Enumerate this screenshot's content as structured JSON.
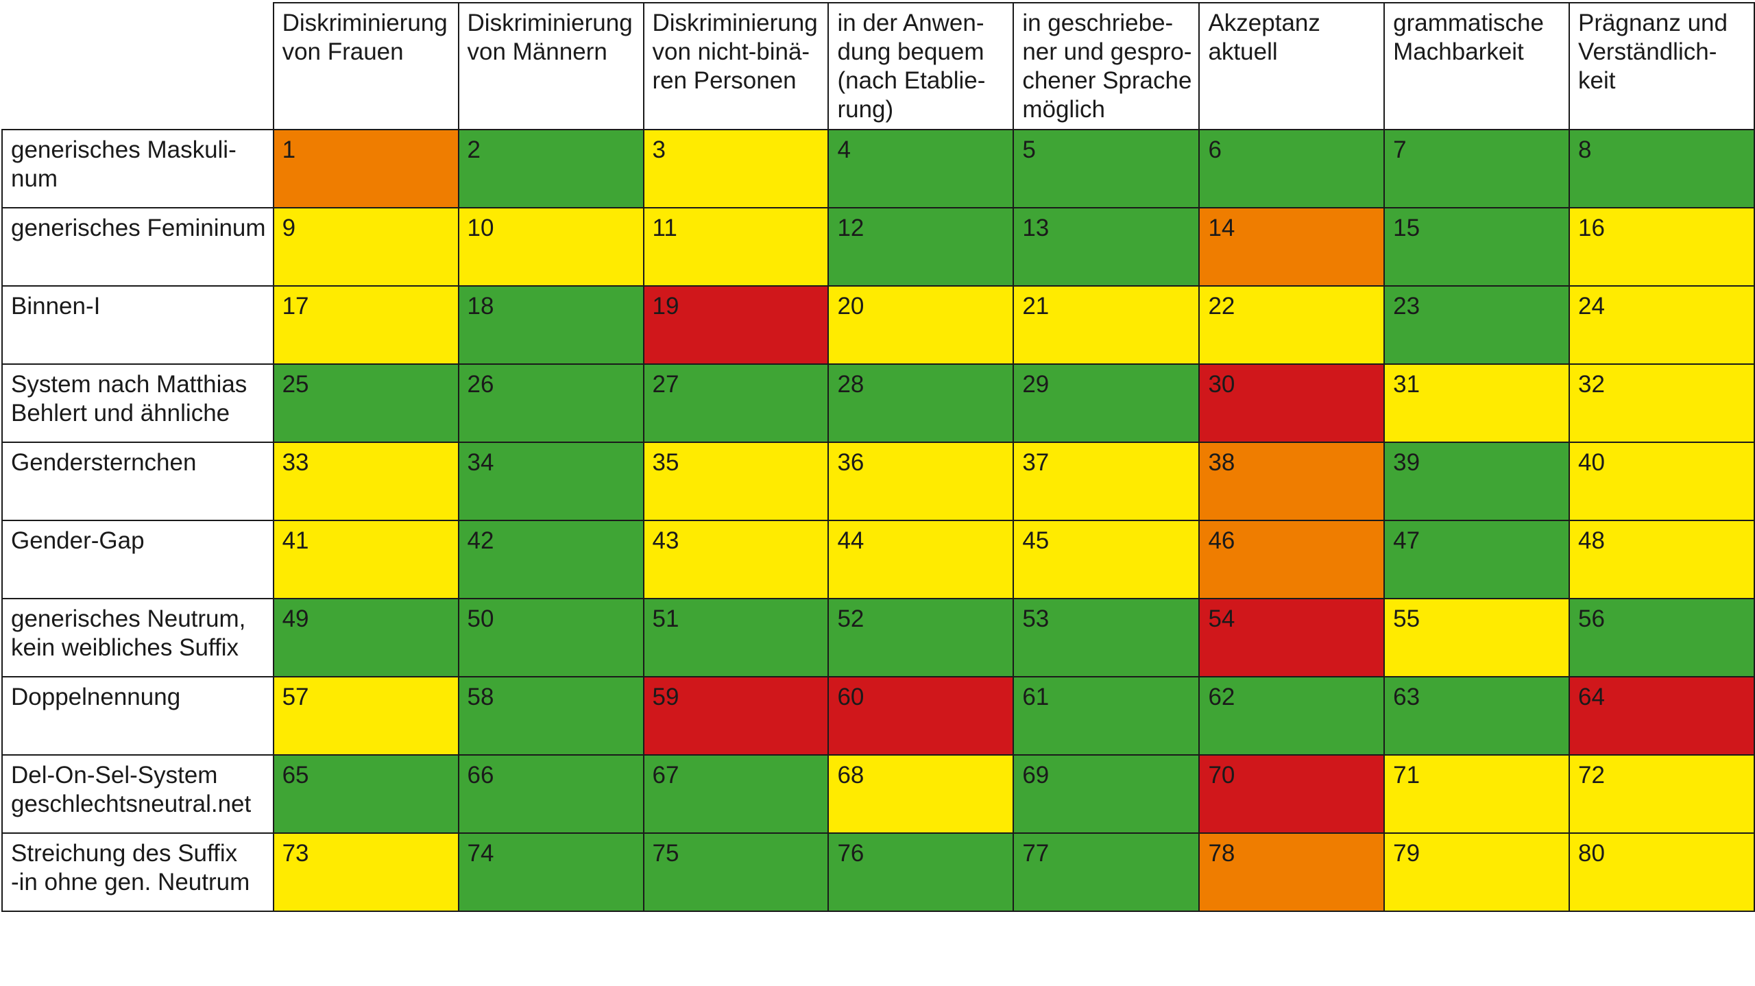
{
  "colors": {
    "green": "#3fa535",
    "yellow": "#ffeb00",
    "orange": "#ef7d00",
    "red": "#d0171b"
  },
  "columns": [
    [
      "Diskriminierung",
      "von Frauen"
    ],
    [
      "Diskriminierung",
      "von Männern"
    ],
    [
      "Diskriminierung",
      "von nicht-binä-",
      "ren Personen"
    ],
    [
      "in der Anwen-",
      "dung bequem",
      "(nach Etablie-",
      "rung)"
    ],
    [
      "in geschriebe-",
      "ner und gespro-",
      "chener Sprache",
      "möglich"
    ],
    [
      "Akzeptanz",
      "aktuell"
    ],
    [
      "grammatische",
      "Machbarkeit"
    ],
    [
      "Prägnanz und",
      "Verständlich-",
      "keit"
    ]
  ],
  "rows": [
    {
      "label": [
        "generisches Maskuli-",
        "num"
      ],
      "cells": [
        [
          "1",
          "orange"
        ],
        [
          "2",
          "green"
        ],
        [
          "3",
          "yellow"
        ],
        [
          "4",
          "green"
        ],
        [
          "5",
          "green"
        ],
        [
          "6",
          "green"
        ],
        [
          "7",
          "green"
        ],
        [
          "8",
          "green"
        ]
      ]
    },
    {
      "label": [
        "generisches Femininum"
      ],
      "cells": [
        [
          "9",
          "yellow"
        ],
        [
          "10",
          "yellow"
        ],
        [
          "11",
          "yellow"
        ],
        [
          "12",
          "green"
        ],
        [
          "13",
          "green"
        ],
        [
          "14",
          "orange"
        ],
        [
          "15",
          "green"
        ],
        [
          "16",
          "yellow"
        ]
      ]
    },
    {
      "label": [
        "Binnen-I"
      ],
      "cells": [
        [
          "17",
          "yellow"
        ],
        [
          "18",
          "green"
        ],
        [
          "19",
          "red"
        ],
        [
          "20",
          "yellow"
        ],
        [
          "21",
          "yellow"
        ],
        [
          "22",
          "yellow"
        ],
        [
          "23",
          "green"
        ],
        [
          "24",
          "yellow"
        ]
      ]
    },
    {
      "label": [
        "System nach Matthias",
        "Behlert und ähnliche"
      ],
      "cells": [
        [
          "25",
          "green"
        ],
        [
          "26",
          "green"
        ],
        [
          "27",
          "green"
        ],
        [
          "28",
          "green"
        ],
        [
          "29",
          "green"
        ],
        [
          "30",
          "red"
        ],
        [
          "31",
          "yellow"
        ],
        [
          "32",
          "yellow"
        ]
      ]
    },
    {
      "label": [
        "Gendersternchen"
      ],
      "cells": [
        [
          "33",
          "yellow"
        ],
        [
          "34",
          "green"
        ],
        [
          "35",
          "yellow"
        ],
        [
          "36",
          "yellow"
        ],
        [
          "37",
          "yellow"
        ],
        [
          "38",
          "orange"
        ],
        [
          "39",
          "green"
        ],
        [
          "40",
          "yellow"
        ]
      ]
    },
    {
      "label": [
        "Gender-Gap"
      ],
      "cells": [
        [
          "41",
          "yellow"
        ],
        [
          "42",
          "green"
        ],
        [
          "43",
          "yellow"
        ],
        [
          "44",
          "yellow"
        ],
        [
          "45",
          "yellow"
        ],
        [
          "46",
          "orange"
        ],
        [
          "47",
          "green"
        ],
        [
          "48",
          "yellow"
        ]
      ]
    },
    {
      "label": [
        "generisches Neutrum,",
        "kein weibliches Suffix"
      ],
      "cells": [
        [
          "49",
          "green"
        ],
        [
          "50",
          "green"
        ],
        [
          "51",
          "green"
        ],
        [
          "52",
          "green"
        ],
        [
          "53",
          "green"
        ],
        [
          "54",
          "red"
        ],
        [
          "55",
          "yellow"
        ],
        [
          "56",
          "green"
        ]
      ]
    },
    {
      "label": [
        "Doppelnennung"
      ],
      "cells": [
        [
          "57",
          "yellow"
        ],
        [
          "58",
          "green"
        ],
        [
          "59",
          "red"
        ],
        [
          "60",
          "red"
        ],
        [
          "61",
          "green"
        ],
        [
          "62",
          "green"
        ],
        [
          "63",
          "green"
        ],
        [
          "64",
          "red"
        ]
      ]
    },
    {
      "label": [
        "Del-On-Sel-System",
        "geschlechtsneutral.net"
      ],
      "cells": [
        [
          "65",
          "green"
        ],
        [
          "66",
          "green"
        ],
        [
          "67",
          "green"
        ],
        [
          "68",
          "yellow"
        ],
        [
          "69",
          "green"
        ],
        [
          "70",
          "red"
        ],
        [
          "71",
          "yellow"
        ],
        [
          "72",
          "yellow"
        ]
      ]
    },
    {
      "label": [
        "Streichung des Suffix",
        "-in ohne gen. Neutrum"
      ],
      "cells": [
        [
          "73",
          "yellow"
        ],
        [
          "74",
          "green"
        ],
        [
          "75",
          "green"
        ],
        [
          "76",
          "green"
        ],
        [
          "77",
          "green"
        ],
        [
          "78",
          "orange"
        ],
        [
          "79",
          "yellow"
        ],
        [
          "80",
          "yellow"
        ]
      ]
    }
  ]
}
